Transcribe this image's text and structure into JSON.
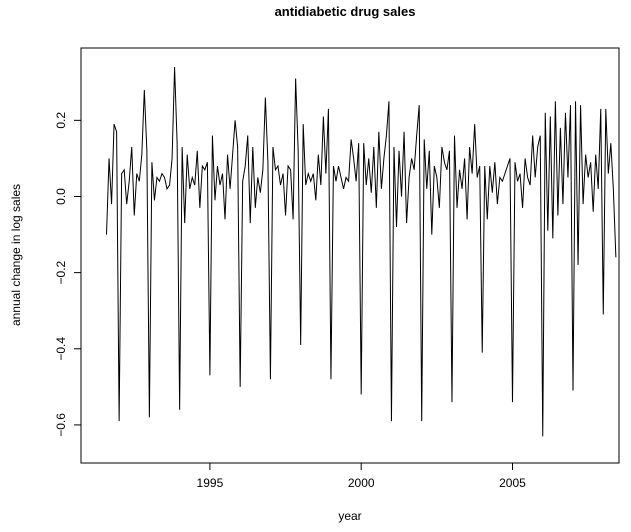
{
  "chart_data": {
    "type": "line",
    "title": "antidiabetic drug sales",
    "x_label": "year",
    "y_label": "annual change in log sales",
    "color": "#000000",
    "x": [
      1991.583,
      1991.667,
      1991.75,
      1991.833,
      1991.917,
      1992,
      1992.083,
      1992.167,
      1992.25,
      1992.333,
      1992.417,
      1992.5,
      1992.583,
      1992.667,
      1992.75,
      1992.833,
      1992.917,
      1993,
      1993.083,
      1993.167,
      1993.25,
      1993.333,
      1993.417,
      1993.5,
      1993.583,
      1993.667,
      1993.75,
      1993.833,
      1993.917,
      1994,
      1994.083,
      1994.167,
      1994.25,
      1994.333,
      1994.417,
      1994.5,
      1994.583,
      1994.667,
      1994.75,
      1994.833,
      1994.917,
      1995,
      1995.083,
      1995.167,
      1995.25,
      1995.333,
      1995.417,
      1995.5,
      1995.583,
      1995.667,
      1995.75,
      1995.833,
      1995.917,
      1996,
      1996.083,
      1996.167,
      1996.25,
      1996.333,
      1996.417,
      1996.5,
      1996.583,
      1996.667,
      1996.75,
      1996.833,
      1996.917,
      1997,
      1997.083,
      1997.167,
      1997.25,
      1997.333,
      1997.417,
      1997.5,
      1997.583,
      1997.667,
      1997.75,
      1997.833,
      1997.917,
      1998,
      1998.083,
      1998.167,
      1998.25,
      1998.333,
      1998.417,
      1998.5,
      1998.583,
      1998.667,
      1998.75,
      1998.833,
      1998.917,
      1999,
      1999.083,
      1999.167,
      1999.25,
      1999.333,
      1999.417,
      1999.5,
      1999.583,
      1999.667,
      1999.75,
      1999.833,
      1999.917,
      2000,
      2000.083,
      2000.167,
      2000.25,
      2000.333,
      2000.417,
      2000.5,
      2000.583,
      2000.667,
      2000.75,
      2000.833,
      2000.917,
      2001,
      2001.083,
      2001.167,
      2001.25,
      2001.333,
      2001.417,
      2001.5,
      2001.583,
      2001.667,
      2001.75,
      2001.833,
      2001.917,
      2002,
      2002.083,
      2002.167,
      2002.25,
      2002.333,
      2002.417,
      2002.5,
      2002.583,
      2002.667,
      2002.75,
      2002.833,
      2002.917,
      2003,
      2003.083,
      2003.167,
      2003.25,
      2003.333,
      2003.417,
      2003.5,
      2003.583,
      2003.667,
      2003.75,
      2003.833,
      2003.917,
      2004,
      2004.083,
      2004.167,
      2004.25,
      2004.333,
      2004.417,
      2004.5,
      2004.583,
      2004.667,
      2004.75,
      2004.833,
      2004.917,
      2005,
      2005.083,
      2005.167,
      2005.25,
      2005.333,
      2005.417,
      2005.5,
      2005.583,
      2005.667,
      2005.75,
      2005.833,
      2005.917,
      2006,
      2006.083,
      2006.167,
      2006.25,
      2006.333,
      2006.417,
      2006.5,
      2006.583,
      2006.667,
      2006.75,
      2006.833,
      2006.917,
      2007,
      2007.083,
      2007.167,
      2007.25,
      2007.333,
      2007.417,
      2007.5,
      2007.583,
      2007.667,
      2007.75,
      2007.833,
      2007.917,
      2008,
      2008.083,
      2008.167,
      2008.25,
      2008.333,
      2008.417
    ],
    "values": [
      -0.1,
      0.1,
      -0.02,
      0.19,
      0.17,
      -0.59,
      0.06,
      0.07,
      -0.02,
      0.04,
      0.13,
      -0.05,
      0.06,
      0.04,
      0.11,
      0.28,
      0.12,
      -0.58,
      0.09,
      -0.01,
      0.05,
      0.04,
      0.06,
      0.05,
      0.02,
      0.03,
      0.1,
      0.34,
      0.14,
      -0.56,
      0.13,
      -0.07,
      0.11,
      0.02,
      0.05,
      0.03,
      0.12,
      -0.03,
      0.08,
      0.07,
      0.09,
      -0.47,
      0.16,
      -0.01,
      0.08,
      0.03,
      0.06,
      -0.06,
      0.11,
      0.02,
      0.11,
      0.2,
      0.13,
      -0.5,
      0.04,
      0.08,
      0.16,
      -0.07,
      0.13,
      -0.03,
      0.05,
      0.01,
      0.07,
      0.26,
      0.09,
      -0.48,
      0.13,
      0.07,
      0.08,
      0.03,
      0.06,
      -0.05,
      0.08,
      0.07,
      -0.06,
      0.31,
      0.12,
      -0.39,
      0.19,
      0.03,
      0.06,
      0.04,
      0.06,
      -0.01,
      0.11,
      0.03,
      0.21,
      0.06,
      0.23,
      -0.48,
      0.08,
      0.04,
      0.08,
      0.05,
      0.02,
      0.05,
      0.04,
      0.15,
      0.1,
      0.04,
      0.14,
      -0.52,
      0.14,
      0.03,
      0.1,
      0.01,
      0.13,
      -0.03,
      0.17,
      0.02,
      0.1,
      0.16,
      0.25,
      -0.59,
      0.13,
      -0.08,
      0.12,
      0.0,
      0.17,
      -0.07,
      0.05,
      0.1,
      0.07,
      0.16,
      0.24,
      -0.59,
      0.15,
      0.02,
      0.12,
      -0.1,
      0.08,
      0.05,
      -0.03,
      0.13,
      0.09,
      0.07,
      0.12,
      -0.54,
      0.16,
      -0.03,
      0.07,
      0.02,
      0.1,
      -0.06,
      0.13,
      0.06,
      0.19,
      0.05,
      0.08,
      -0.41,
      0.08,
      -0.06,
      0.08,
      0.01,
      0.09,
      -0.02,
      0.05,
      0.04,
      0.06,
      0.08,
      0.1,
      -0.54,
      0.09,
      0.04,
      0.06,
      -0.03,
      0.1,
      0.05,
      0.03,
      0.16,
      0.05,
      0.13,
      0.16,
      -0.63,
      0.22,
      -0.09,
      0.21,
      -0.11,
      0.25,
      -0.05,
      0.18,
      -0.02,
      0.22,
      0.05,
      0.24,
      -0.51,
      0.25,
      -0.18,
      0.24,
      -0.02,
      0.11,
      0.05,
      0.09,
      -0.04,
      0.11,
      0.02,
      0.23,
      -0.31,
      0.23,
      0.06,
      0.14,
      0.02,
      -0.16
    ],
    "xlim": [
      1990.74,
      2008.52
    ],
    "xticks": [
      1995,
      2000,
      2005
    ],
    "ylim": [
      -0.7,
      0.39
    ],
    "yticks": [
      {
        "value": -0.6,
        "label": "−0.6"
      },
      {
        "value": -0.4,
        "label": "−0.4"
      },
      {
        "value": -0.2,
        "label": "−0.2"
      },
      {
        "value": 0,
        "label": "0.0"
      },
      0.2
    ]
  }
}
